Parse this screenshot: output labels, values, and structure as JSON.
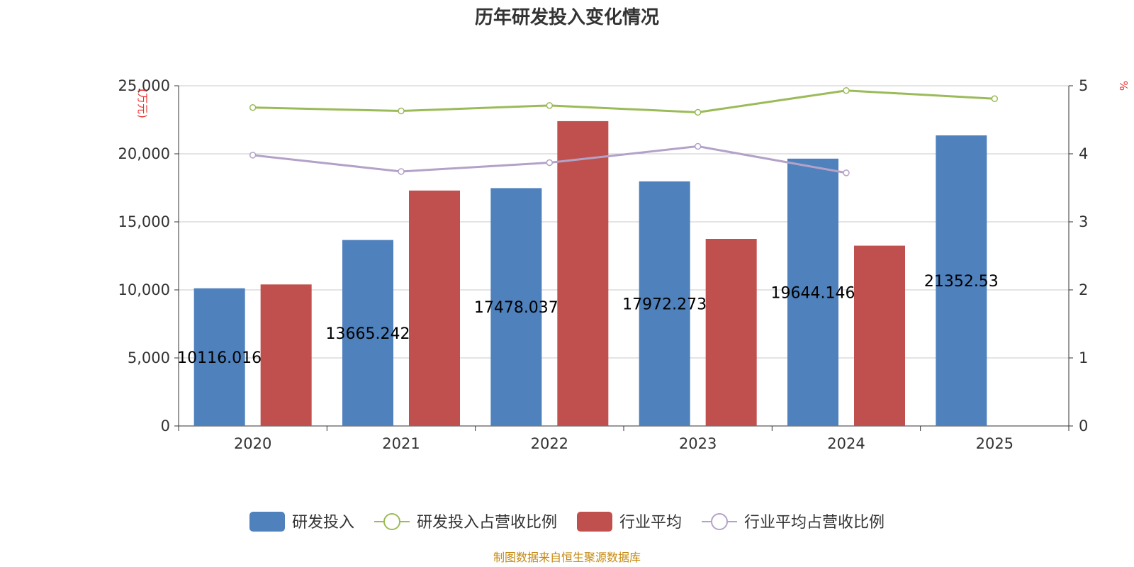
{
  "chart_data": {
    "type": "bar",
    "title": "历年研发投入变化情况",
    "categories": [
      "2020",
      "2021",
      "2022",
      "2023",
      "2024",
      "2025"
    ],
    "left_axis": {
      "unit": "(万元)",
      "ylim": [
        0,
        25000
      ],
      "ticks": [
        "0",
        "5,000",
        "10,000",
        "15,000",
        "20,000",
        "25,000"
      ]
    },
    "right_axis": {
      "unit": "%",
      "ylim": [
        0,
        5
      ],
      "ticks": [
        "0",
        "1",
        "2",
        "3",
        "4",
        "5"
      ]
    },
    "grid": true,
    "legend_position": "bottom",
    "series": [
      {
        "name": "研发投入",
        "type": "bar",
        "axis": "left",
        "color": "#4f81bd",
        "values": [
          10116.016,
          13665.242,
          17478.037,
          17972.273,
          19644.146,
          21352.53
        ],
        "labels": [
          "10116.016",
          "13665.242",
          "17478.037",
          "17972.273",
          "19644.146",
          "21352.53"
        ]
      },
      {
        "name": "研发投入占营收比例",
        "type": "line",
        "axis": "right",
        "color": "#9bbb59",
        "values": [
          4.68,
          4.63,
          4.71,
          4.61,
          4.93,
          4.81
        ]
      },
      {
        "name": "行业平均",
        "type": "bar",
        "axis": "left",
        "color": "#c0504d",
        "values": [
          10400,
          17300,
          22400,
          13750,
          13250,
          null
        ]
      },
      {
        "name": "行业平均占营收比例",
        "type": "line",
        "axis": "right",
        "color": "#b3a2c7",
        "values": [
          3.98,
          3.74,
          3.87,
          4.11,
          3.72,
          null
        ]
      }
    ]
  },
  "source_text": "制图数据来自恒生聚源数据库"
}
